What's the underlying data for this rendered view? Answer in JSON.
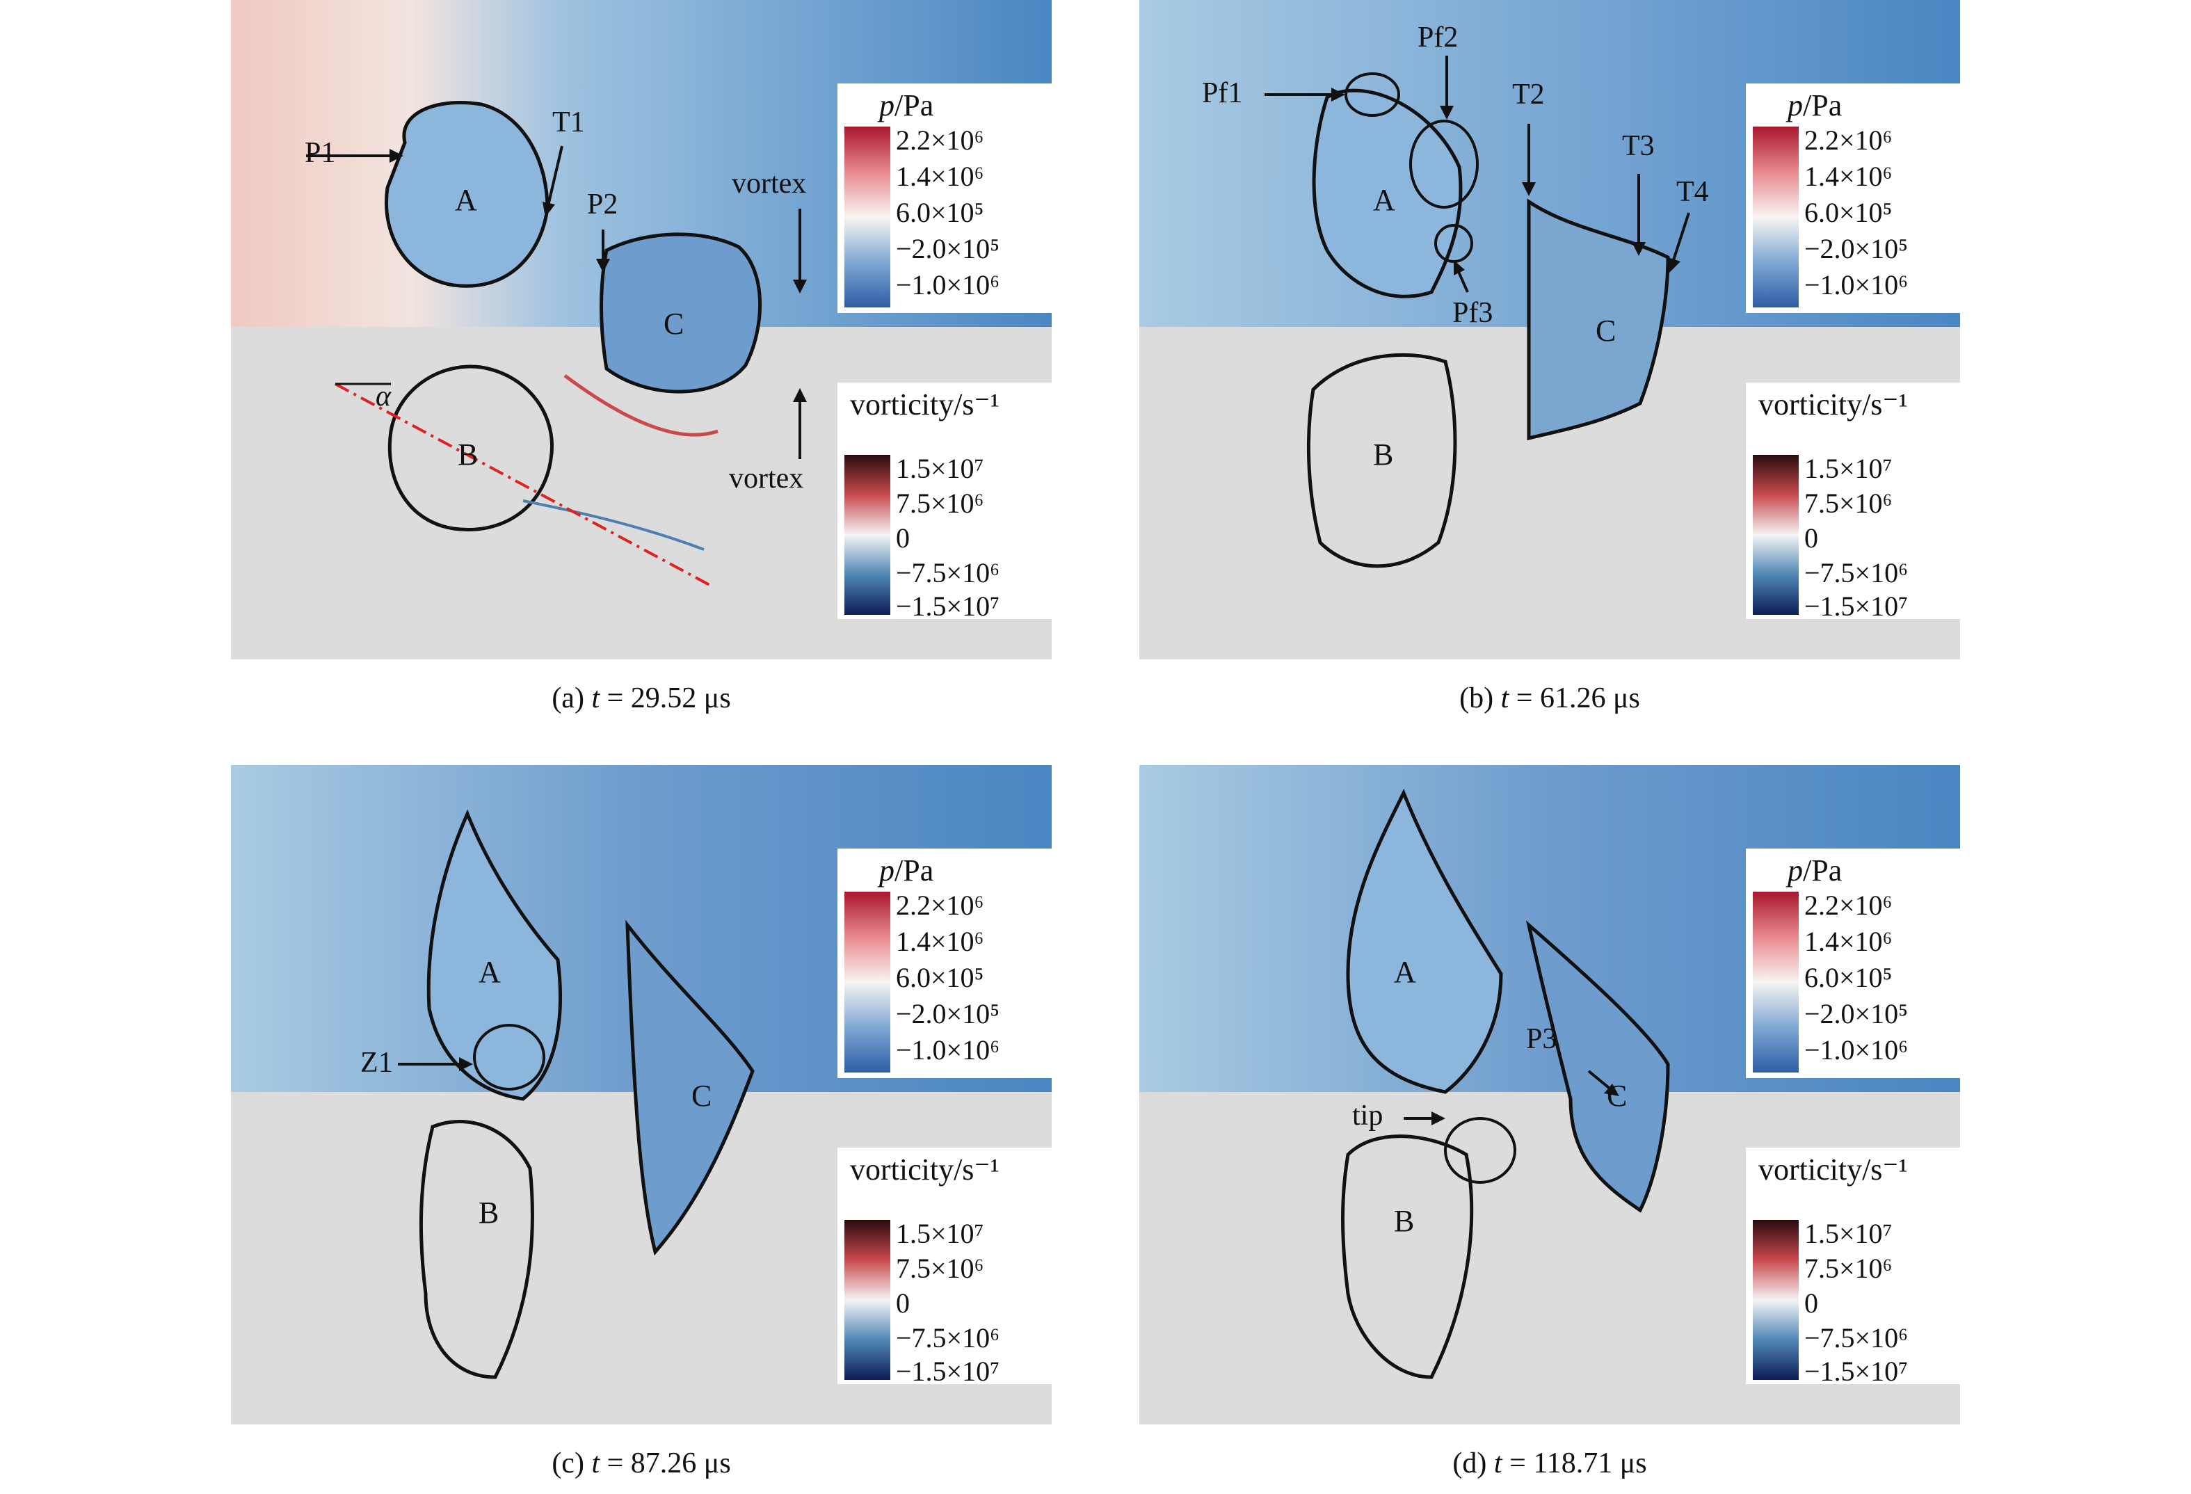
{
  "figure": {
    "panels": [
      {
        "id": "a",
        "caption_prefix": "(a)",
        "caption_t": "t",
        "caption_rest": "= 29.52 μs",
        "regions": [
          "A",
          "B",
          "C"
        ],
        "annotations": [
          "P1",
          "T1",
          "P2",
          "vortex",
          "vortex",
          "α"
        ]
      },
      {
        "id": "b",
        "caption_prefix": "(b)",
        "caption_t": "t",
        "caption_rest": "= 61.26 μs",
        "regions": [
          "A",
          "B",
          "C"
        ],
        "annotations": [
          "Pf1",
          "Pf2",
          "T2",
          "T3",
          "T4",
          "Pf3"
        ]
      },
      {
        "id": "c",
        "caption_prefix": "(c)",
        "caption_t": "t",
        "caption_rest": "= 87.26 μs",
        "regions": [
          "A",
          "B",
          "C"
        ],
        "annotations": [
          "Z1"
        ]
      },
      {
        "id": "d",
        "caption_prefix": "(d)",
        "caption_t": "t",
        "caption_rest": "= 118.71 μs",
        "regions": [
          "A",
          "B",
          "C"
        ],
        "annotations": [
          "P3",
          "tip"
        ]
      }
    ],
    "pressure_legend": {
      "title_symbol": "p",
      "title_unit": "/Pa",
      "labels": [
        "2.2×10⁶",
        "1.4×10⁶",
        "6.0×10⁵",
        "−2.0×10⁵",
        "−1.0×10⁶"
      ],
      "colors": [
        "#a8182c",
        "#e8898e",
        "#f8f4f2",
        "#7fa8d3",
        "#2e5da5"
      ]
    },
    "vorticity_legend": {
      "title": "vorticity/s⁻¹",
      "labels": [
        "1.5×10⁷",
        "7.5×10⁶",
        "0",
        "−7.5×10⁶",
        "−1.5×10⁷"
      ],
      "colors": [
        "#2a0c10",
        "#c94a4e",
        "#f4f4f4",
        "#4f87b4",
        "#0e1d55"
      ]
    }
  }
}
